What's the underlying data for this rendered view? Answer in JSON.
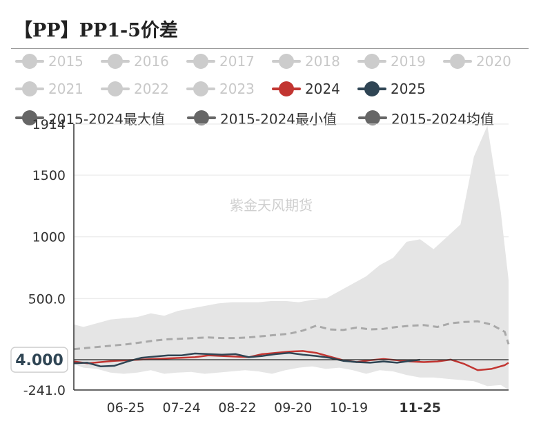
{
  "title": "【PP】PP1-5价差",
  "legend": [
    {
      "label": "2015",
      "color": "#cccccc",
      "dim": true
    },
    {
      "label": "2016",
      "color": "#cccccc",
      "dim": true
    },
    {
      "label": "2017",
      "color": "#cccccc",
      "dim": true
    },
    {
      "label": "2018",
      "color": "#cccccc",
      "dim": true
    },
    {
      "label": "2019",
      "color": "#cccccc",
      "dim": true
    },
    {
      "label": "2020",
      "color": "#cccccc",
      "dim": true
    },
    {
      "label": "2021",
      "color": "#cccccc",
      "dim": true
    },
    {
      "label": "2022",
      "color": "#cccccc",
      "dim": true
    },
    {
      "label": "2023",
      "color": "#cccccc",
      "dim": true
    },
    {
      "label": "2024",
      "color": "#c23531",
      "dim": false
    },
    {
      "label": "2025",
      "color": "#2f4554",
      "dim": false
    },
    {
      "label": "2015-2024最大值",
      "color": "#666666",
      "dim": false
    },
    {
      "label": "2015-2024最小值",
      "color": "#666666",
      "dim": false
    },
    {
      "label": "2015-2024均值",
      "color": "#666666",
      "dim": false
    }
  ],
  "watermark": "紫金天风期货",
  "chart_data": {
    "type": "line",
    "title": "【PP】PP1-5价差",
    "ylim": [
      -241,
      1914
    ],
    "y_ticks": [
      "1914",
      "1500",
      "1000",
      "500.0",
      "-241.0"
    ],
    "x_ticks": [
      "06-25",
      "07-24",
      "08-22",
      "09-20",
      "10-19",
      "11-25"
    ],
    "x_range": [
      "05-29",
      "01-10"
    ],
    "highlighted_x": "11-25",
    "crosshair_value": "4.000",
    "grid": true,
    "legend_position": "top",
    "band": {
      "name": "2015-2024最大值 / 2015-2024最小值",
      "color": "#e5e5e5",
      "x": [
        "05-29",
        "06-03",
        "06-10",
        "06-17",
        "06-24",
        "07-01",
        "07-08",
        "07-15",
        "07-22",
        "07-29",
        "08-05",
        "08-12",
        "08-19",
        "08-26",
        "09-02",
        "09-09",
        "09-16",
        "09-23",
        "09-30",
        "10-07",
        "10-14",
        "10-21",
        "10-28",
        "11-04",
        "11-11",
        "11-18",
        "11-25",
        "12-02",
        "12-09",
        "12-16",
        "12-23",
        "12-30",
        "01-06",
        "01-10"
      ],
      "max": [
        290,
        270,
        300,
        330,
        340,
        350,
        380,
        360,
        400,
        420,
        440,
        460,
        470,
        470,
        470,
        480,
        480,
        470,
        490,
        500,
        560,
        620,
        680,
        770,
        830,
        960,
        980,
        900,
        1000,
        1100,
        1650,
        1900,
        1200,
        650
      ],
      "min": [
        -30,
        -60,
        -70,
        -100,
        -110,
        -100,
        -80,
        -110,
        -100,
        -95,
        -110,
        -100,
        -90,
        -80,
        -90,
        -110,
        -80,
        -60,
        -50,
        -70,
        -60,
        -80,
        -110,
        -80,
        -90,
        -120,
        -140,
        -140,
        -150,
        -160,
        -170,
        -210,
        -200,
        -240
      ]
    },
    "series": [
      {
        "name": "2015-2024均值",
        "color": "#a9a9a9",
        "dash": true,
        "x": [
          "05-29",
          "06-05",
          "06-12",
          "06-19",
          "06-26",
          "07-03",
          "07-10",
          "07-17",
          "07-24",
          "07-31",
          "08-07",
          "08-14",
          "08-21",
          "08-28",
          "09-04",
          "09-11",
          "09-18",
          "09-25",
          "10-02",
          "10-09",
          "10-16",
          "10-23",
          "10-30",
          "11-06",
          "11-13",
          "11-20",
          "11-27",
          "12-04",
          "12-11",
          "12-18",
          "12-25",
          "01-01",
          "01-08",
          "01-10"
        ],
        "values": [
          90,
          100,
          110,
          120,
          130,
          145,
          160,
          170,
          175,
          180,
          185,
          180,
          180,
          185,
          195,
          205,
          215,
          240,
          280,
          250,
          245,
          265,
          250,
          255,
          270,
          280,
          285,
          270,
          300,
          310,
          315,
          290,
          230,
          130
        ]
      },
      {
        "name": "2024",
        "color": "#c23531",
        "dash": false,
        "x": [
          "05-29",
          "06-05",
          "06-12",
          "06-19",
          "06-26",
          "07-03",
          "07-10",
          "07-17",
          "07-24",
          "07-31",
          "08-07",
          "08-14",
          "08-21",
          "08-28",
          "09-04",
          "09-11",
          "09-18",
          "09-25",
          "10-02",
          "10-09",
          "10-16",
          "10-23",
          "10-30",
          "11-06",
          "11-13",
          "11-20",
          "11-27",
          "12-04",
          "12-11",
          "12-18",
          "12-25",
          "01-01",
          "01-08",
          "01-10"
        ],
        "values": [
          -10,
          -25,
          -15,
          -5,
          0,
          5,
          10,
          15,
          20,
          25,
          40,
          35,
          30,
          25,
          50,
          60,
          70,
          75,
          60,
          30,
          0,
          -15,
          0,
          10,
          0,
          -10,
          -15,
          -10,
          5,
          -30,
          -80,
          -70,
          -40,
          -20
        ]
      },
      {
        "name": "2025",
        "color": "#2f4554",
        "dash": false,
        "x": [
          "05-29",
          "06-05",
          "06-12",
          "06-19",
          "06-26",
          "07-03",
          "07-10",
          "07-17",
          "07-24",
          "07-31",
          "08-07",
          "08-14",
          "08-21",
          "08-28",
          "09-04",
          "09-11",
          "09-18",
          "09-25",
          "10-02",
          "10-09",
          "10-16",
          "10-23",
          "10-30",
          "11-06",
          "11-13",
          "11-20",
          "11-25"
        ],
        "values": [
          -25,
          -20,
          -50,
          -45,
          -10,
          20,
          30,
          40,
          40,
          55,
          50,
          45,
          50,
          25,
          35,
          50,
          60,
          45,
          35,
          20,
          -5,
          -15,
          -20,
          -10,
          -20,
          -5,
          4
        ]
      }
    ]
  }
}
